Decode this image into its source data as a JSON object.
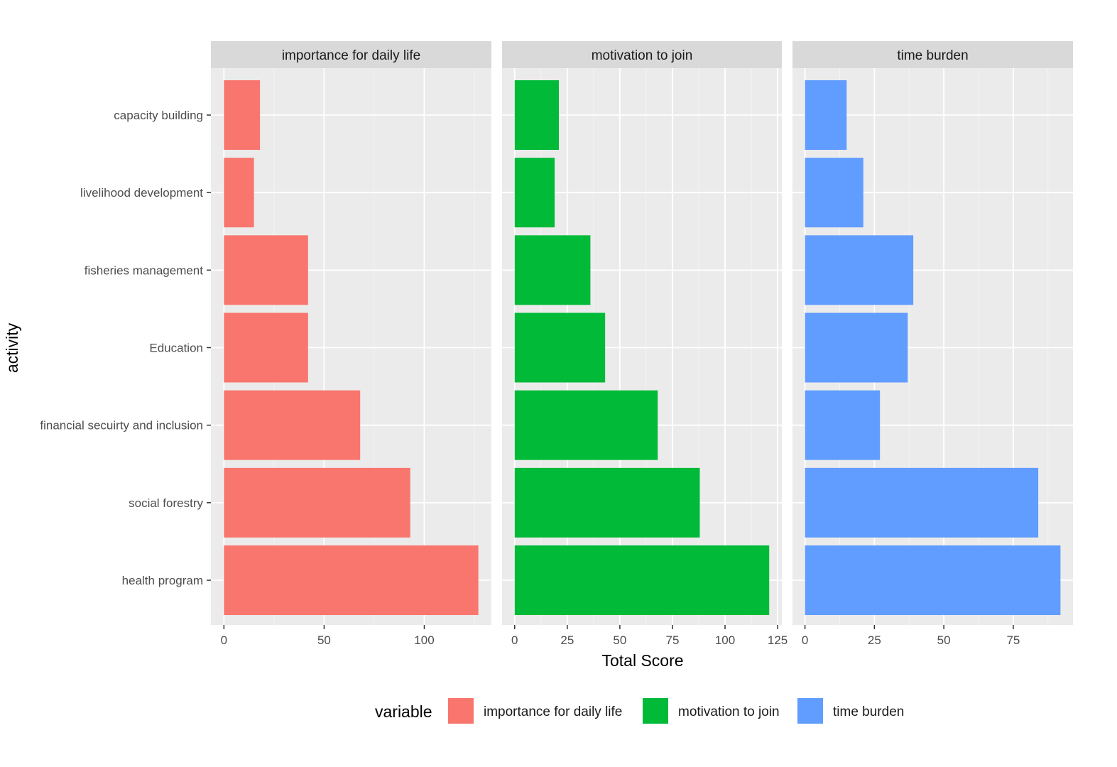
{
  "chart_data": {
    "type": "bar",
    "orientation": "horizontal",
    "title": "",
    "xlabel": "Total Score",
    "ylabel": "activity",
    "categories": [
      "capacity building",
      "livelihood development",
      "fisheries management",
      "Education",
      "financial secuirty and inclusion",
      "social forestry",
      "health program"
    ],
    "panels": [
      {
        "name": "importance for daily life",
        "color": "#F8766D",
        "values": [
          18,
          15,
          42,
          42,
          68,
          93,
          127
        ],
        "xlim": [
          -6.5,
          133.5
        ],
        "ticks": [
          0,
          50,
          100
        ],
        "minor_ticks": [
          25,
          75,
          125
        ]
      },
      {
        "name": "motivation to join",
        "color": "#00BA38",
        "values": [
          21,
          19,
          36,
          43,
          68,
          88,
          121
        ],
        "xlim": [
          -6,
          127
        ],
        "ticks": [
          0,
          25,
          50,
          75,
          100,
          125
        ],
        "minor_ticks": [
          12.5,
          37.5,
          62.5,
          87.5,
          112.5
        ]
      },
      {
        "name": "time burden",
        "color": "#619CFF",
        "values": [
          15,
          21,
          39,
          37,
          27,
          84,
          92
        ],
        "xlim": [
          -4.5,
          96.5
        ],
        "ticks": [
          0,
          25,
          50,
          75
        ],
        "minor_ticks": [
          12.5,
          37.5,
          62.5,
          87.5
        ]
      }
    ],
    "legend": {
      "title": "variable",
      "position": "bottom",
      "items": [
        {
          "label": "importance for daily life",
          "color": "#F8766D"
        },
        {
          "label": "motivation to join",
          "color": "#00BA38"
        },
        {
          "label": "time burden",
          "color": "#619CFF"
        }
      ]
    },
    "colors": {
      "panel_background": "#EBEBEB",
      "strip_background": "#D9D9D9",
      "grid_major": "#FFFFFF"
    }
  }
}
